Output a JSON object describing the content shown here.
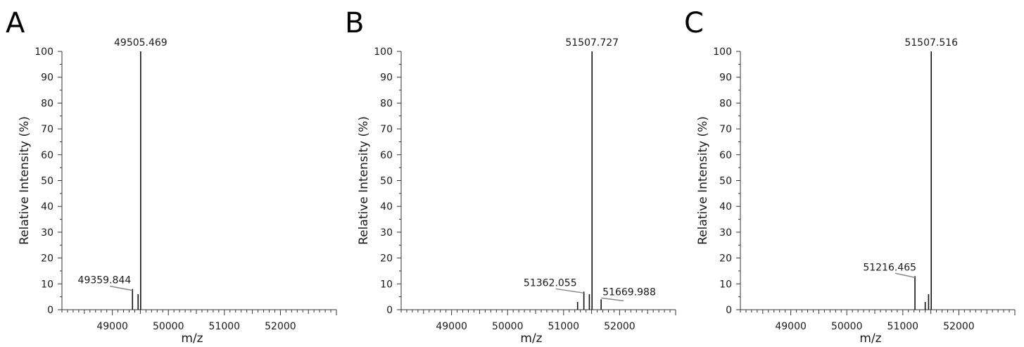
{
  "chart_data": [
    {
      "type": "bar",
      "panel_label": "A",
      "xlabel": "m/z",
      "ylabel": "Relative Intensity (%)",
      "xlim": [
        48100,
        53000
      ],
      "ylim": [
        0,
        100
      ],
      "x_ticks": [
        "49000",
        "50000",
        "51000",
        "52000"
      ],
      "y_ticks": [
        "0",
        "10",
        "20",
        "30",
        "40",
        "50",
        "60",
        "70",
        "80",
        "90",
        "100"
      ],
      "peaks": [
        {
          "x": 49359.844,
          "y": 8
        },
        {
          "x": 49460,
          "y": 6
        },
        {
          "x": 49505.469,
          "y": 100
        }
      ],
      "annotations": [
        {
          "text": "49505.469",
          "x": 49505.469,
          "y": 100
        },
        {
          "text": "49359.844",
          "x": 49359.844,
          "y": 8
        }
      ]
    },
    {
      "type": "bar",
      "panel_label": "B",
      "xlabel": "m/z",
      "ylabel": "Relative Intensity (%)",
      "xlim": [
        48100,
        53000
      ],
      "ylim": [
        0,
        100
      ],
      "x_ticks": [
        "49000",
        "50000",
        "51000",
        "52000"
      ],
      "y_ticks": [
        "0",
        "10",
        "20",
        "30",
        "40",
        "50",
        "60",
        "70",
        "80",
        "90",
        "100"
      ],
      "peaks": [
        {
          "x": 51250,
          "y": 3
        },
        {
          "x": 51362.055,
          "y": 7
        },
        {
          "x": 51460,
          "y": 6
        },
        {
          "x": 51507.727,
          "y": 100
        },
        {
          "x": 51669.988,
          "y": 4
        }
      ],
      "annotations": [
        {
          "text": "51507.727",
          "x": 51507.727,
          "y": 100
        },
        {
          "text": "51362.055",
          "x": 51362.055,
          "y": 7
        },
        {
          "text": "51669.988",
          "x": 51669.988,
          "y": 4
        }
      ]
    },
    {
      "type": "bar",
      "panel_label": "C",
      "xlabel": "m/z",
      "ylabel": "Relative Intensity (%)",
      "xlim": [
        48100,
        53000
      ],
      "ylim": [
        0,
        100
      ],
      "x_ticks": [
        "49000",
        "50000",
        "51000",
        "52000"
      ],
      "y_ticks": [
        "0",
        "10",
        "20",
        "30",
        "40",
        "50",
        "60",
        "70",
        "80",
        "90",
        "100"
      ],
      "peaks": [
        {
          "x": 51216.465,
          "y": 13
        },
        {
          "x": 51400,
          "y": 3
        },
        {
          "x": 51460,
          "y": 6
        },
        {
          "x": 51507.516,
          "y": 100
        }
      ],
      "annotations": [
        {
          "text": "51507.516",
          "x": 51507.516,
          "y": 100
        },
        {
          "text": "51216.465",
          "x": 51216.465,
          "y": 13
        }
      ]
    }
  ]
}
